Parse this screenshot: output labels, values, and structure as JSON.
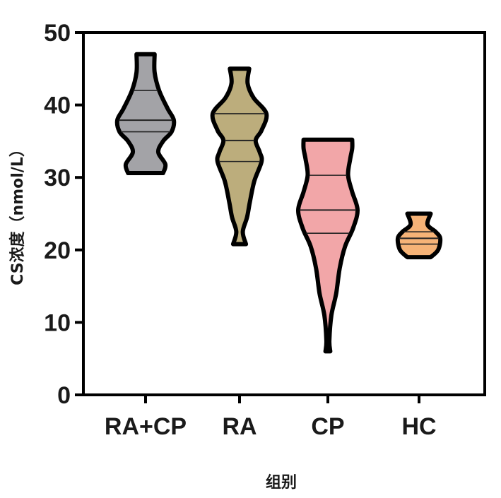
{
  "chart_data": {
    "type": "violin",
    "ylabel": "CS浓度（nmol/L）",
    "xlabel": "组别",
    "ylim": [
      0,
      50
    ],
    "yticks": [
      0,
      10,
      20,
      30,
      40,
      50
    ],
    "grid": false,
    "groups": [
      {
        "name": "RA+CP",
        "color": "#a3a3a7",
        "min": 30.6,
        "max": 47.0,
        "quartiles": [
          36.3,
          37.9,
          42.0
        ],
        "density": [
          [
            30.6,
            0.62
          ],
          [
            31.8,
            0.7
          ],
          [
            33.5,
            0.45
          ],
          [
            35.0,
            0.62
          ],
          [
            36.3,
            0.92
          ],
          [
            37.9,
            1.0
          ],
          [
            39.5,
            0.78
          ],
          [
            42.0,
            0.48
          ],
          [
            44.5,
            0.32
          ],
          [
            47.0,
            0.32
          ]
        ]
      },
      {
        "name": "RA",
        "color": "#bcad7c",
        "min": 20.8,
        "max": 45.0,
        "quartiles": [
          32.2,
          35.1,
          38.8
        ],
        "density": [
          [
            20.8,
            0.24
          ],
          [
            22.5,
            0.12
          ],
          [
            24.5,
            0.28
          ],
          [
            26.5,
            0.38
          ],
          [
            29.5,
            0.55
          ],
          [
            32.2,
            0.82
          ],
          [
            33.5,
            0.75
          ],
          [
            35.1,
            0.6
          ],
          [
            36.5,
            0.82
          ],
          [
            38.8,
            1.0
          ],
          [
            41.0,
            0.52
          ],
          [
            43.0,
            0.3
          ],
          [
            45.0,
            0.36
          ]
        ]
      },
      {
        "name": "CP",
        "color": "#f2a6a8",
        "min": 6.0,
        "max": 35.2,
        "quartiles": [
          22.3,
          25.5,
          30.3
        ],
        "density": [
          [
            6.0,
            0.08
          ],
          [
            7.5,
            0.05
          ],
          [
            11.0,
            0.12
          ],
          [
            14.0,
            0.28
          ],
          [
            17.5,
            0.4
          ],
          [
            20.5,
            0.58
          ],
          [
            23.0,
            0.85
          ],
          [
            25.5,
            1.0
          ],
          [
            28.0,
            0.82
          ],
          [
            30.3,
            0.68
          ],
          [
            32.5,
            0.75
          ],
          [
            34.0,
            0.82
          ],
          [
            35.2,
            0.82
          ]
        ]
      },
      {
        "name": "HC",
        "color": "#f6b377",
        "min": 19.0,
        "max": 25.0,
        "quartiles": [
          20.8,
          21.6,
          22.5
        ],
        "density": [
          [
            19.0,
            0.55
          ],
          [
            20.0,
            0.9
          ],
          [
            21.6,
            1.0
          ],
          [
            22.5,
            0.78
          ],
          [
            23.5,
            0.4
          ],
          [
            25.0,
            0.55
          ]
        ]
      }
    ]
  }
}
